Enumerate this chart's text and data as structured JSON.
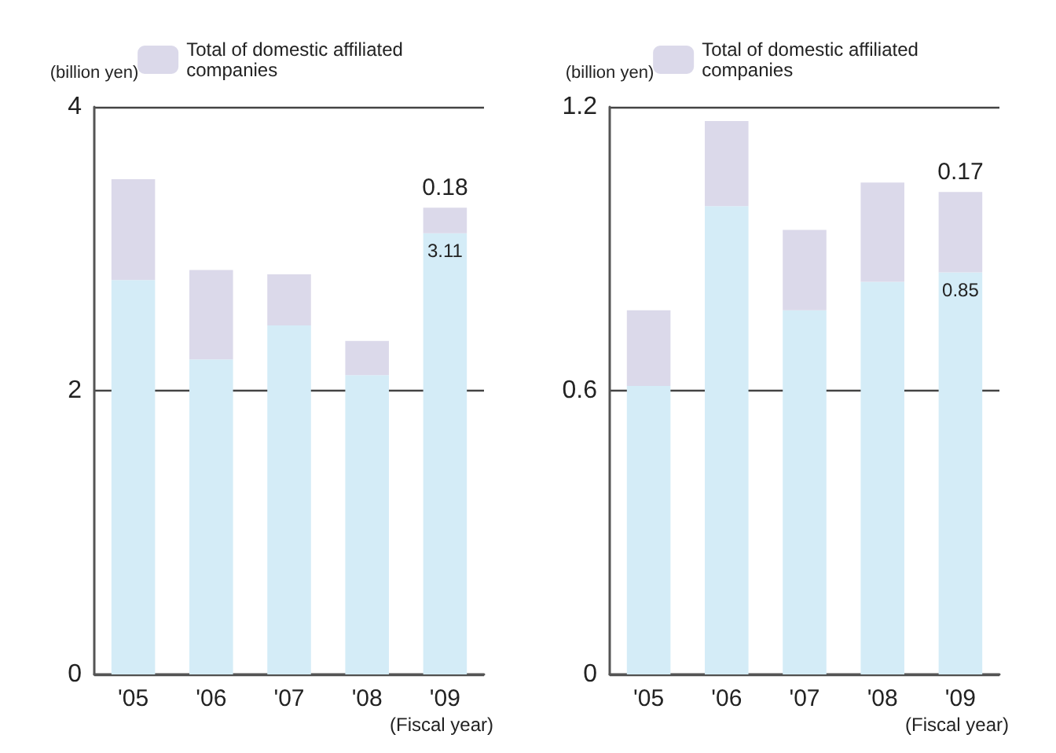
{
  "chart_data": [
    {
      "type": "bar",
      "stacked": true,
      "ylabel": "(billion yen)",
      "xlabel": "(Fiscal year)",
      "categories": [
        "'05",
        "'06",
        "'07",
        "'08",
        "'09"
      ],
      "series": [
        {
          "color": "#d4ecf7",
          "values": [
            2.78,
            2.22,
            2.46,
            2.11,
            3.11
          ],
          "value_labels": [
            null,
            null,
            null,
            null,
            "3.11"
          ]
        },
        {
          "name": "Total of domestic affiliated companies",
          "color": "#dbd9ea",
          "values": [
            0.71,
            0.63,
            0.36,
            0.24,
            0.18
          ],
          "value_labels": [
            null,
            null,
            null,
            null,
            "0.18"
          ]
        }
      ],
      "ylim": [
        0,
        4
      ],
      "yticks": [
        0,
        2,
        4
      ],
      "grid": "y",
      "legend": "top"
    },
    {
      "type": "bar",
      "stacked": true,
      "ylabel": "(billion yen)",
      "xlabel": "(Fiscal year)",
      "categories": [
        "'05",
        "'06",
        "'07",
        "'08",
        "'09"
      ],
      "series": [
        {
          "color": "#d4ecf7",
          "values": [
            0.61,
            0.99,
            0.77,
            0.83,
            0.85
          ],
          "value_labels": [
            null,
            null,
            null,
            null,
            "0.85"
          ]
        },
        {
          "name": "Total of domestic affiliated companies",
          "color": "#dbd9ea",
          "values": [
            0.16,
            0.18,
            0.17,
            0.21,
            0.17
          ],
          "value_labels": [
            null,
            null,
            null,
            null,
            "0.17"
          ]
        }
      ],
      "ylim": [
        0,
        1.2
      ],
      "yticks": [
        0,
        0.6,
        1.2
      ],
      "grid": "y",
      "legend": "top"
    }
  ]
}
